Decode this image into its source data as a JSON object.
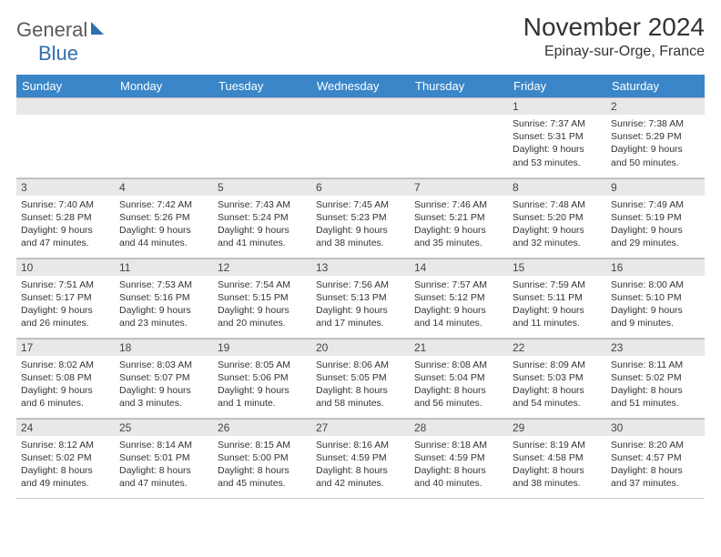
{
  "brand": {
    "part1": "General",
    "part2": "Blue"
  },
  "title": "November 2024",
  "location": "Epinay-sur-Orge, France",
  "colors": {
    "header_bg": "#3a86c8",
    "daynum_bg": "#e8e8e8",
    "border": "#c9c9c9",
    "brand_gray": "#5a5a5a",
    "brand_blue": "#2e6fb0"
  },
  "weekdays": [
    "Sunday",
    "Monday",
    "Tuesday",
    "Wednesday",
    "Thursday",
    "Friday",
    "Saturday"
  ],
  "weeks": [
    [
      null,
      null,
      null,
      null,
      null,
      {
        "n": "1",
        "sr": "7:37 AM",
        "ss": "5:31 PM",
        "dl": "9 hours and 53 minutes."
      },
      {
        "n": "2",
        "sr": "7:38 AM",
        "ss": "5:29 PM",
        "dl": "9 hours and 50 minutes."
      }
    ],
    [
      {
        "n": "3",
        "sr": "7:40 AM",
        "ss": "5:28 PM",
        "dl": "9 hours and 47 minutes."
      },
      {
        "n": "4",
        "sr": "7:42 AM",
        "ss": "5:26 PM",
        "dl": "9 hours and 44 minutes."
      },
      {
        "n": "5",
        "sr": "7:43 AM",
        "ss": "5:24 PM",
        "dl": "9 hours and 41 minutes."
      },
      {
        "n": "6",
        "sr": "7:45 AM",
        "ss": "5:23 PM",
        "dl": "9 hours and 38 minutes."
      },
      {
        "n": "7",
        "sr": "7:46 AM",
        "ss": "5:21 PM",
        "dl": "9 hours and 35 minutes."
      },
      {
        "n": "8",
        "sr": "7:48 AM",
        "ss": "5:20 PM",
        "dl": "9 hours and 32 minutes."
      },
      {
        "n": "9",
        "sr": "7:49 AM",
        "ss": "5:19 PM",
        "dl": "9 hours and 29 minutes."
      }
    ],
    [
      {
        "n": "10",
        "sr": "7:51 AM",
        "ss": "5:17 PM",
        "dl": "9 hours and 26 minutes."
      },
      {
        "n": "11",
        "sr": "7:53 AM",
        "ss": "5:16 PM",
        "dl": "9 hours and 23 minutes."
      },
      {
        "n": "12",
        "sr": "7:54 AM",
        "ss": "5:15 PM",
        "dl": "9 hours and 20 minutes."
      },
      {
        "n": "13",
        "sr": "7:56 AM",
        "ss": "5:13 PM",
        "dl": "9 hours and 17 minutes."
      },
      {
        "n": "14",
        "sr": "7:57 AM",
        "ss": "5:12 PM",
        "dl": "9 hours and 14 minutes."
      },
      {
        "n": "15",
        "sr": "7:59 AM",
        "ss": "5:11 PM",
        "dl": "9 hours and 11 minutes."
      },
      {
        "n": "16",
        "sr": "8:00 AM",
        "ss": "5:10 PM",
        "dl": "9 hours and 9 minutes."
      }
    ],
    [
      {
        "n": "17",
        "sr": "8:02 AM",
        "ss": "5:08 PM",
        "dl": "9 hours and 6 minutes."
      },
      {
        "n": "18",
        "sr": "8:03 AM",
        "ss": "5:07 PM",
        "dl": "9 hours and 3 minutes."
      },
      {
        "n": "19",
        "sr": "8:05 AM",
        "ss": "5:06 PM",
        "dl": "9 hours and 1 minute."
      },
      {
        "n": "20",
        "sr": "8:06 AM",
        "ss": "5:05 PM",
        "dl": "8 hours and 58 minutes."
      },
      {
        "n": "21",
        "sr": "8:08 AM",
        "ss": "5:04 PM",
        "dl": "8 hours and 56 minutes."
      },
      {
        "n": "22",
        "sr": "8:09 AM",
        "ss": "5:03 PM",
        "dl": "8 hours and 54 minutes."
      },
      {
        "n": "23",
        "sr": "8:11 AM",
        "ss": "5:02 PM",
        "dl": "8 hours and 51 minutes."
      }
    ],
    [
      {
        "n": "24",
        "sr": "8:12 AM",
        "ss": "5:02 PM",
        "dl": "8 hours and 49 minutes."
      },
      {
        "n": "25",
        "sr": "8:14 AM",
        "ss": "5:01 PM",
        "dl": "8 hours and 47 minutes."
      },
      {
        "n": "26",
        "sr": "8:15 AM",
        "ss": "5:00 PM",
        "dl": "8 hours and 45 minutes."
      },
      {
        "n": "27",
        "sr": "8:16 AM",
        "ss": "4:59 PM",
        "dl": "8 hours and 42 minutes."
      },
      {
        "n": "28",
        "sr": "8:18 AM",
        "ss": "4:59 PM",
        "dl": "8 hours and 40 minutes."
      },
      {
        "n": "29",
        "sr": "8:19 AM",
        "ss": "4:58 PM",
        "dl": "8 hours and 38 minutes."
      },
      {
        "n": "30",
        "sr": "8:20 AM",
        "ss": "4:57 PM",
        "dl": "8 hours and 37 minutes."
      }
    ]
  ],
  "labels": {
    "sunrise": "Sunrise: ",
    "sunset": "Sunset: ",
    "daylight": "Daylight: "
  }
}
